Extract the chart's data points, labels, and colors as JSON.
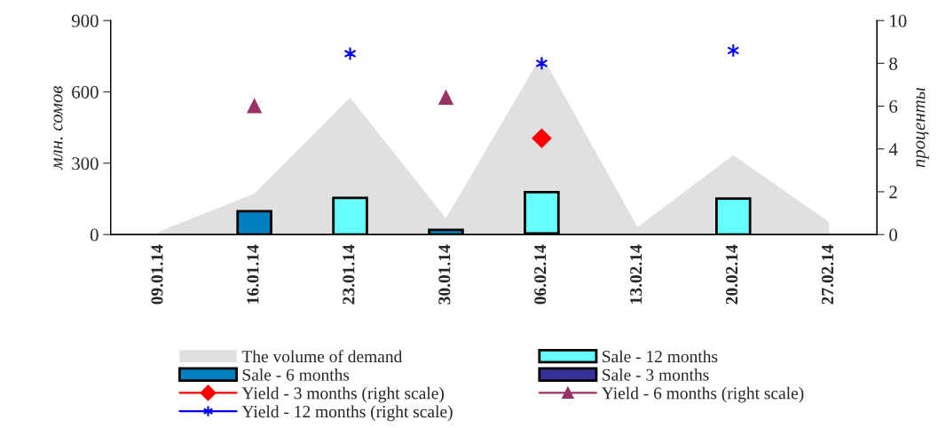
{
  "chart_data": {
    "type": "bar",
    "ylabel": "млн. сомов",
    "y2label": "проценты",
    "categories": [
      "09.01.14",
      "16.01.14",
      "23.01.14",
      "30.01.14",
      "06.02.14",
      "13.02.14",
      "20.02.14",
      "27.02.14"
    ],
    "ylim": [
      0,
      900
    ],
    "yticks": [
      0,
      300,
      600,
      900
    ],
    "y2lim": [
      0,
      10
    ],
    "y2ticks": [
      0,
      2,
      4,
      6,
      8,
      10
    ],
    "legend": "bottom",
    "series": [
      {
        "name": "The volume of demand",
        "type": "area",
        "color": "#e0e0e0",
        "values": [
          12,
          172,
          576,
          68,
          755,
          31,
          334,
          53
        ]
      },
      {
        "name": "Sale - 12 months",
        "color": "#66ffff",
        "values": [
          null,
          null,
          154,
          null,
          178,
          null,
          151,
          null
        ]
      },
      {
        "name": "Sale - 6 months",
        "color": "#0080c0",
        "values": [
          null,
          98,
          null,
          20,
          null,
          null,
          null,
          null
        ]
      },
      {
        "name": "Sale - 3 months",
        "color": "#333399",
        "values": [
          null,
          null,
          null,
          null,
          5,
          null,
          null,
          null
        ]
      },
      {
        "name": "Yield - 3 months (right scale)",
        "type": "scatter",
        "axis": "y2",
        "marker": "diamond",
        "color": "#ff0000",
        "values": [
          null,
          null,
          null,
          null,
          4.5,
          null,
          null,
          null
        ]
      },
      {
        "name": "Yield - 6 months (right scale)",
        "type": "scatter",
        "axis": "y2",
        "marker": "triangle",
        "color": "#993366",
        "values": [
          null,
          6.0,
          null,
          6.4,
          null,
          null,
          null,
          null
        ]
      },
      {
        "name": "Yield - 12 months (right scale)",
        "type": "scatter",
        "axis": "y2",
        "marker": "cross",
        "color": "#0000ff",
        "values": [
          null,
          null,
          8.45,
          null,
          8.0,
          null,
          8.6,
          null
        ]
      }
    ]
  }
}
